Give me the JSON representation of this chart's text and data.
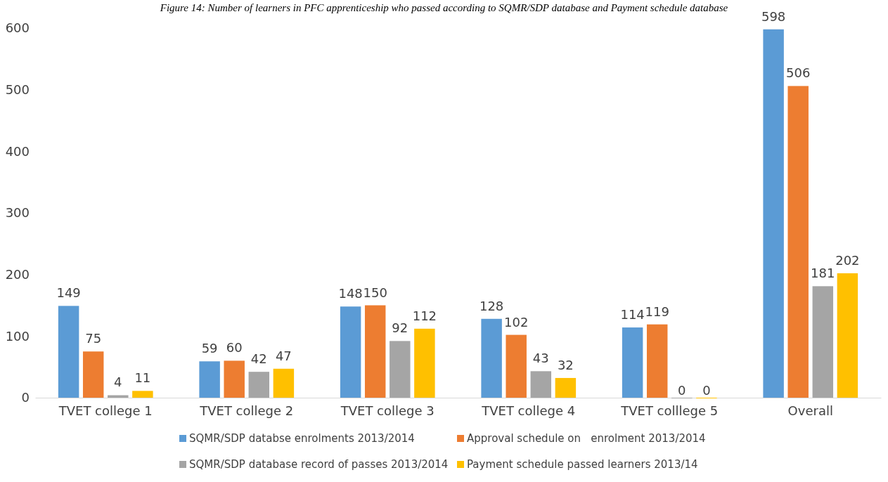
{
  "chart_data": {
    "type": "bar",
    "title": "Figure 14: Number of learners in PFC apprenticeship who passed according to SQMR/SDP database and Payment schedule database",
    "categories": [
      "TVET college 1",
      "TVET college 2",
      "TVET college 3",
      "TVET college 4",
      "TVET colllege 5",
      "Overall"
    ],
    "series": [
      {
        "name": "SQMR/SDP databse enrolments 2013/2014",
        "color": "#5b9bd5",
        "values": [
          149,
          59,
          148,
          128,
          114,
          598
        ]
      },
      {
        "name": "Approval schedule on   enrolment 2013/2014",
        "color": "#ed7d31",
        "values": [
          75,
          60,
          150,
          102,
          119,
          506
        ]
      },
      {
        "name": "SQMR/SDP database record of passes 2013/2014",
        "color": "#a5a5a5",
        "values": [
          4,
          42,
          92,
          43,
          0,
          181
        ]
      },
      {
        "name": "Payment schedule passed learners 2013/14",
        "color": "#ffc000",
        "values": [
          11,
          47,
          112,
          32,
          0,
          202
        ]
      }
    ],
    "ylim": [
      0,
      600
    ],
    "yticks": [
      0,
      100,
      200,
      300,
      400,
      500,
      600
    ],
    "grid": false,
    "legend": "bottom",
    "data_labels": true
  }
}
